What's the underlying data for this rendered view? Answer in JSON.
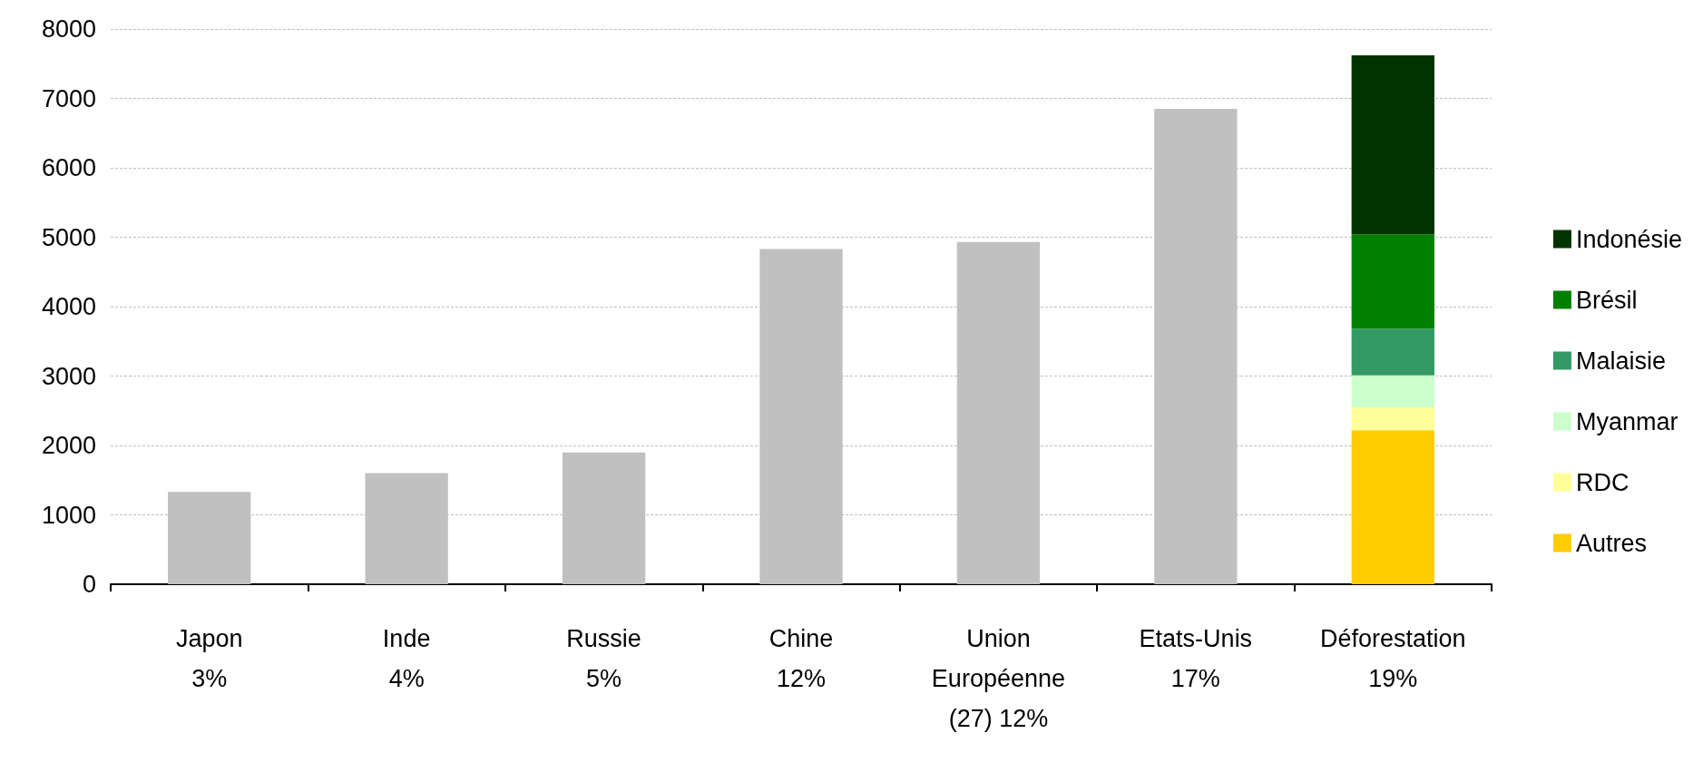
{
  "chart_data": {
    "type": "bar",
    "stacked": true,
    "categories": [
      "Japon\n3%",
      "Inde\n4%",
      "Russie\n5%",
      "Chine\n12%",
      "Union\nEuropéenne\n(27) 12%",
      "Etats-Unis\n17%",
      "Déforestation\n19%"
    ],
    "series": [
      {
        "color": "#c0c0c0",
        "values": [
          1330,
          1600,
          1900,
          4830,
          4930,
          6850,
          null
        ]
      },
      {
        "name": "Autres",
        "color": "#ffcc00",
        "values": [
          null,
          null,
          null,
          null,
          null,
          null,
          2220
        ]
      },
      {
        "name": "RDC",
        "color": "#ffff99",
        "values": [
          null,
          null,
          null,
          null,
          null,
          null,
          330
        ]
      },
      {
        "name": "Myanmar",
        "color": "#ccffcc",
        "values": [
          null,
          null,
          null,
          null,
          null,
          null,
          460
        ]
      },
      {
        "name": "Malaisie",
        "color": "#339966",
        "values": [
          null,
          null,
          null,
          null,
          null,
          null,
          670
        ]
      },
      {
        "name": "Brésil",
        "color": "#008000",
        "values": [
          null,
          null,
          null,
          null,
          null,
          null,
          1360
        ]
      },
      {
        "name": "Indonésie",
        "color": "#003300",
        "values": [
          null,
          null,
          null,
          null,
          null,
          null,
          2580
        ]
      }
    ],
    "ylim": [
      0,
      8000
    ],
    "yticks": [
      0,
      1000,
      2000,
      3000,
      4000,
      5000,
      6000,
      7000,
      8000
    ],
    "grid": "y",
    "legend": "right"
  }
}
